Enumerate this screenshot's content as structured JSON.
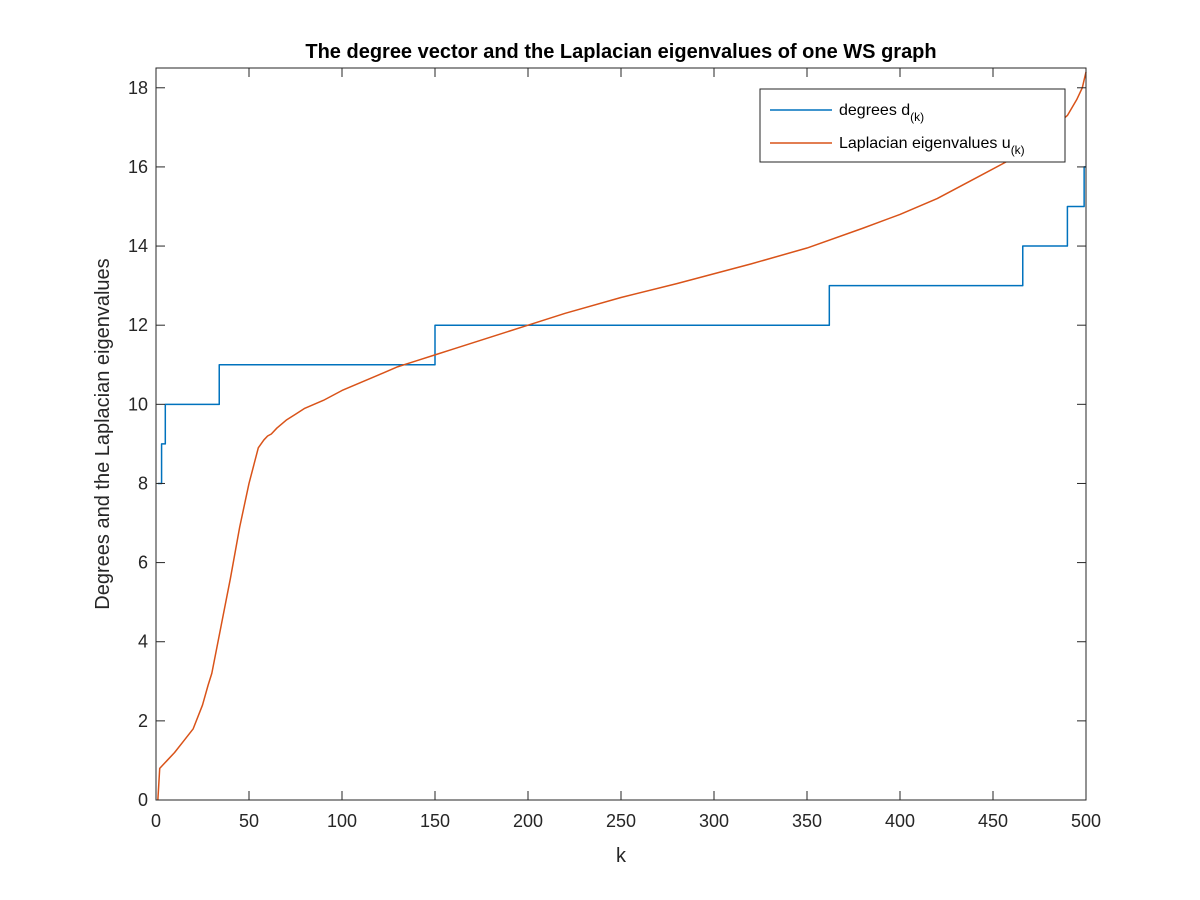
{
  "chart_data": {
    "type": "line",
    "title": "The degree vector and the Laplacian eigenvalues of one WS graph",
    "xlabel": "k",
    "ylabel": "Degrees and the Laplacian eigenvalues",
    "xlim": [
      0,
      500
    ],
    "ylim": [
      0,
      18.5
    ],
    "xticks": [
      0,
      50,
      100,
      150,
      200,
      250,
      300,
      350,
      400,
      450,
      500
    ],
    "yticks": [
      0,
      2,
      4,
      6,
      8,
      10,
      12,
      14,
      16,
      18
    ],
    "grid": false,
    "legend_position": "top-right",
    "series": [
      {
        "name": "degrees d",
        "name_subscript": "(k)",
        "color": "#0072BD",
        "step": true,
        "x": [
          1,
          3,
          3,
          5,
          5,
          34,
          34,
          150,
          150,
          362,
          362,
          466,
          466,
          490,
          490,
          499,
          499,
          500
        ],
        "y": [
          8,
          8,
          9,
          9,
          10,
          10,
          11,
          11,
          12,
          12,
          13,
          13,
          14,
          14,
          15,
          15,
          16,
          16
        ]
      },
      {
        "name": "Laplacian eigenvalues u",
        "name_subscript": "(k)",
        "color": "#D95319",
        "step": false,
        "x": [
          1,
          2,
          4,
          6,
          10,
          15,
          20,
          25,
          28,
          30,
          35,
          40,
          45,
          50,
          55,
          58,
          60,
          62,
          65,
          70,
          75,
          80,
          85,
          90,
          100,
          110,
          120,
          130,
          140,
          150,
          160,
          180,
          200,
          220,
          250,
          280,
          300,
          320,
          350,
          380,
          400,
          420,
          440,
          460,
          480,
          490,
          495,
          498,
          500
        ],
        "y": [
          0,
          0.8,
          0.9,
          1.0,
          1.2,
          1.5,
          1.8,
          2.4,
          2.9,
          3.2,
          4.4,
          5.6,
          6.9,
          8.0,
          8.9,
          9.1,
          9.2,
          9.25,
          9.4,
          9.6,
          9.75,
          9.9,
          10.0,
          10.1,
          10.35,
          10.55,
          10.75,
          10.95,
          11.1,
          11.25,
          11.4,
          11.7,
          12.0,
          12.3,
          12.7,
          13.05,
          13.3,
          13.55,
          13.95,
          14.45,
          14.8,
          15.2,
          15.7,
          16.2,
          16.9,
          17.3,
          17.7,
          18.0,
          18.4
        ]
      }
    ]
  }
}
